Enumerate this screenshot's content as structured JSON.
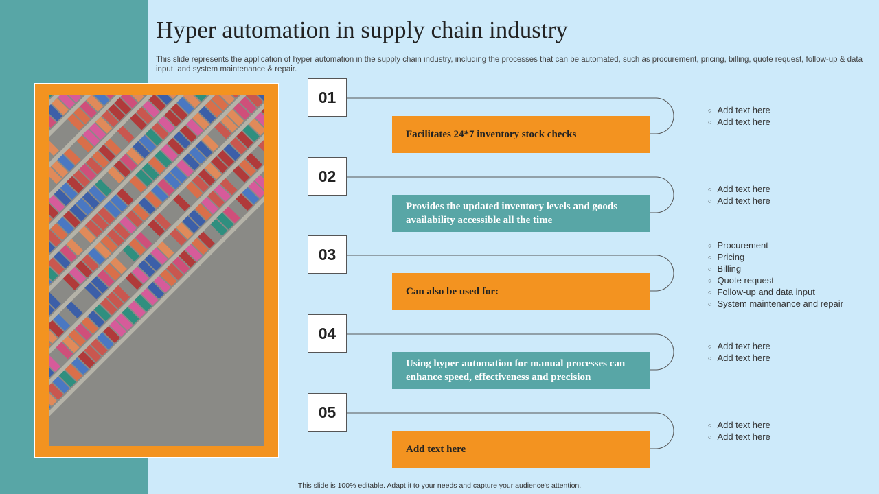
{
  "title": "Hyper automation in supply chain industry",
  "subtitle": "This slide represents the application of hyper automation in the supply chain industry, including the processes that can be automated, such as procurement, pricing, billing, quote request, follow-up & data input, and system maintenance & repair.",
  "items": [
    {
      "number": "01",
      "text": "Facilitates 24*7 inventory stock checks",
      "bullets": [
        "Add text here",
        "Add text here"
      ]
    },
    {
      "number": "02",
      "text": "Provides the updated inventory levels and goods availability accessible all the time",
      "bullets": [
        "Add text here",
        "Add text here"
      ]
    },
    {
      "number": "03",
      "text": "Can also be used for:",
      "bullets": [
        "Procurement",
        "Pricing",
        "Billing",
        "Quote request",
        "Follow-up and data input",
        "System maintenance and repair"
      ]
    },
    {
      "number": "04",
      "text": "Using hyper automation for manual processes can enhance speed, effectiveness and precision",
      "bullets": [
        "Add text here",
        "Add text here"
      ]
    },
    {
      "number": "05",
      "text": "Add text here",
      "bullets": [
        "Add text here",
        "Add text here"
      ]
    }
  ],
  "footer": "This slide is 100% editable. Adapt it to your needs and capture your audience's attention."
}
